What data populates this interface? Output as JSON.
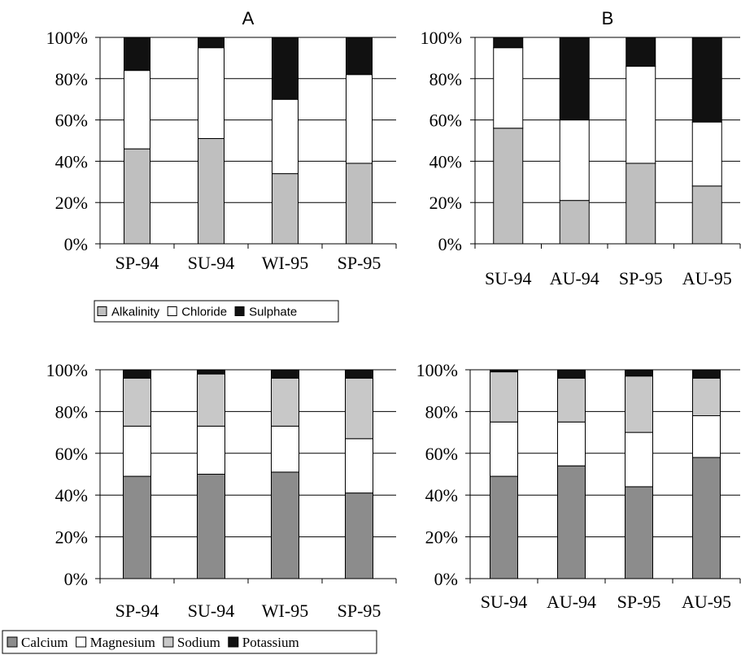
{
  "chart_data": [
    {
      "type": "bar",
      "stacked": true,
      "percent": true,
      "title": "A",
      "categories": [
        "SP-94",
        "SU-94",
        "WI-95",
        "SP-95"
      ],
      "ylim": [
        0,
        100
      ],
      "yticks": [
        "0%",
        "20%",
        "40%",
        "60%",
        "80%",
        "100%"
      ],
      "grid": true,
      "series": [
        {
          "name": "Alkalinity",
          "color": "#bfbfbf",
          "values": [
            46,
            51,
            34,
            39
          ]
        },
        {
          "name": "Chloride",
          "color": "#ffffff",
          "values": [
            38,
            44,
            36,
            43
          ]
        },
        {
          "name": "Sulphate",
          "color": "#111111",
          "values": [
            16,
            5,
            30,
            18
          ]
        }
      ],
      "legend": {
        "position": "bottom",
        "style": "sans"
      }
    },
    {
      "type": "bar",
      "stacked": true,
      "percent": true,
      "title": "B",
      "categories": [
        "SU-94",
        "AU-94",
        "SP-95",
        "AU-95"
      ],
      "ylim": [
        0,
        100
      ],
      "yticks": [
        "0%",
        "20%",
        "40%",
        "60%",
        "80%",
        "100%"
      ],
      "grid": true,
      "series": [
        {
          "name": "Alkalinity",
          "color": "#bfbfbf",
          "values": [
            56,
            21,
            39,
            28
          ]
        },
        {
          "name": "Chloride",
          "color": "#ffffff",
          "values": [
            39,
            39,
            47,
            31
          ]
        },
        {
          "name": "Sulphate",
          "color": "#111111",
          "values": [
            5,
            40,
            14,
            41
          ]
        }
      ]
    },
    {
      "type": "bar",
      "stacked": true,
      "percent": true,
      "title": "",
      "categories": [
        "SP-94",
        "SU-94",
        "WI-95",
        "SP-95"
      ],
      "ylim": [
        0,
        100
      ],
      "yticks": [
        "0%",
        "20%",
        "40%",
        "60%",
        "80%",
        "100%"
      ],
      "grid": true,
      "series": [
        {
          "name": "Calcium",
          "color": "#8c8c8c",
          "values": [
            49,
            50,
            51,
            41
          ]
        },
        {
          "name": "Magnesium",
          "color": "#ffffff",
          "values": [
            24,
            23,
            22,
            26
          ]
        },
        {
          "name": "Sodium",
          "color": "#c8c8c8",
          "values": [
            23,
            25,
            23,
            29
          ]
        },
        {
          "name": "Potassium",
          "color": "#111111",
          "values": [
            4,
            2,
            4,
            4
          ]
        }
      ],
      "legend": {
        "position": "bottom",
        "style": "serif"
      }
    },
    {
      "type": "bar",
      "stacked": true,
      "percent": true,
      "title": "",
      "categories": [
        "SU-94",
        "AU-94",
        "SP-95",
        "AU-95"
      ],
      "ylim": [
        0,
        100
      ],
      "yticks": [
        "0%",
        "20%",
        "40%",
        "60%",
        "80%",
        "100%"
      ],
      "grid": true,
      "series": [
        {
          "name": "Calcium",
          "color": "#8c8c8c",
          "values": [
            49,
            54,
            44,
            58
          ]
        },
        {
          "name": "Magnesium",
          "color": "#ffffff",
          "values": [
            26,
            21,
            26,
            20
          ]
        },
        {
          "name": "Sodium",
          "color": "#c8c8c8",
          "values": [
            24,
            21,
            27,
            18
          ]
        },
        {
          "name": "Potassium",
          "color": "#111111",
          "values": [
            1,
            4,
            3,
            4
          ]
        }
      ]
    }
  ]
}
